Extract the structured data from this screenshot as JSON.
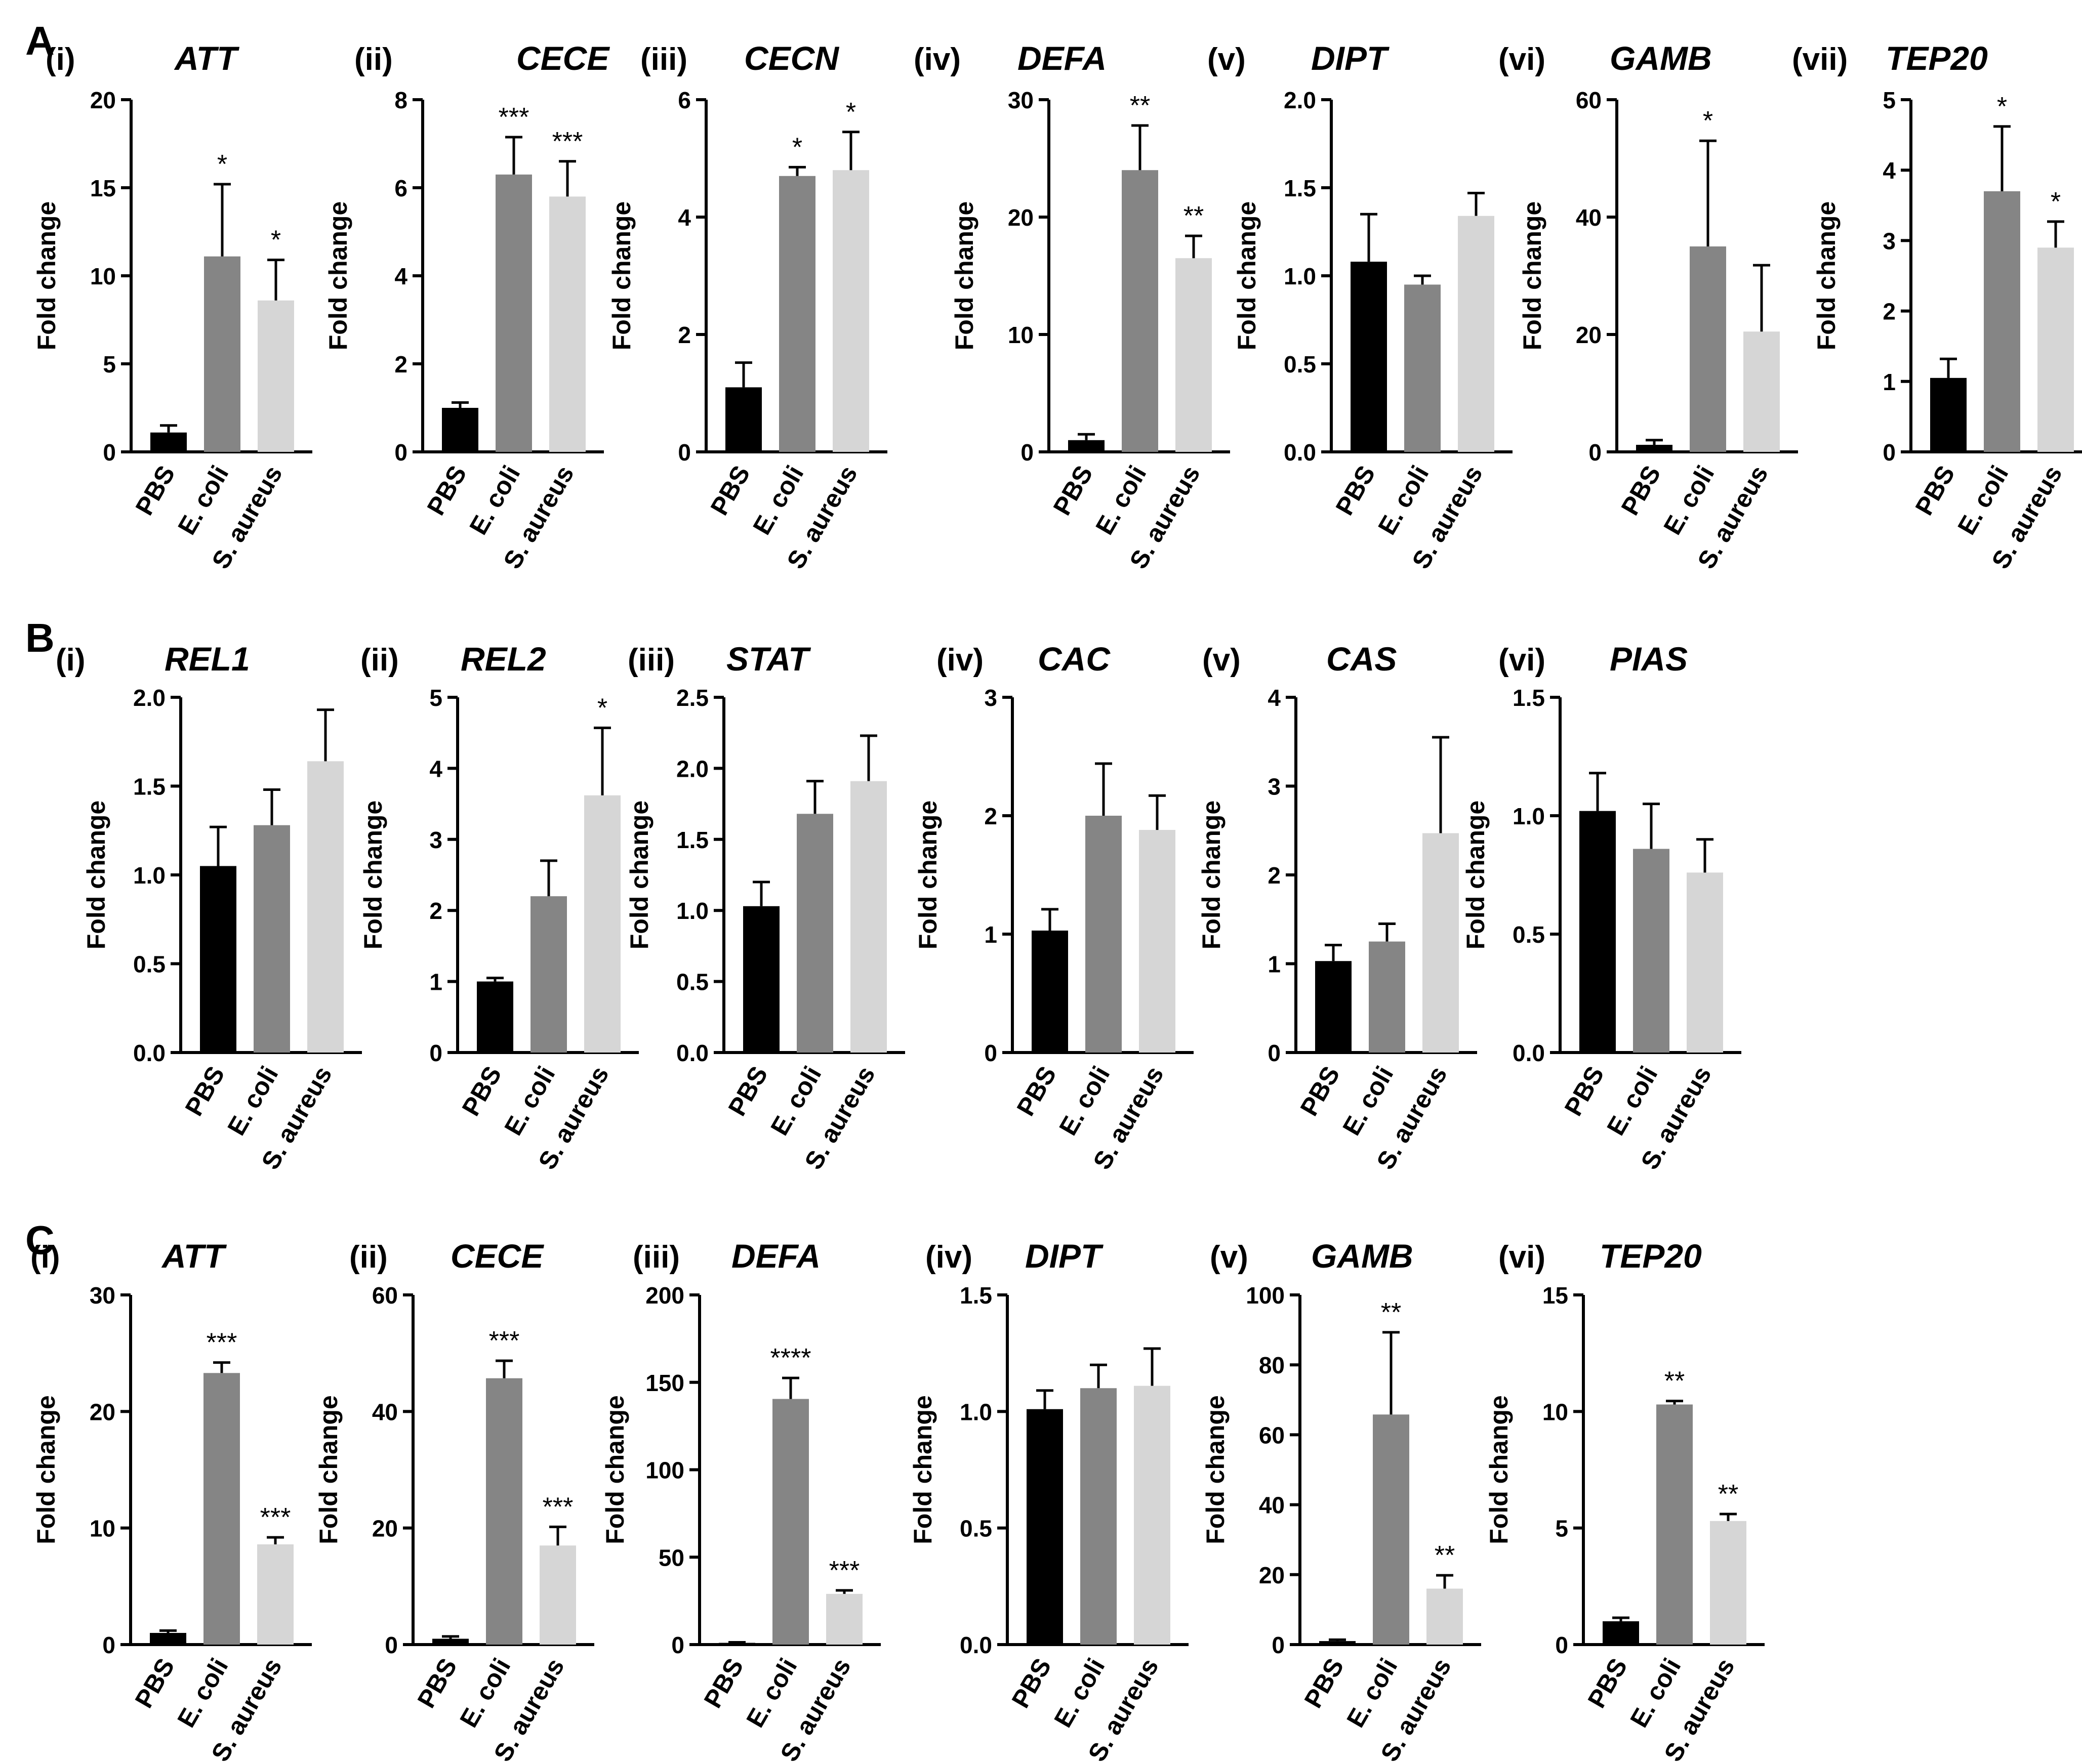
{
  "figure": {
    "categories": [
      "PBS",
      "E. coli",
      "S. aureus"
    ],
    "ylabel": "Fold change",
    "colors": {
      "PBS": "#000000",
      "E. coli": "#858585",
      "S. aureus": "#d6d6d6"
    },
    "panels": [
      {
        "id": "A",
        "label": "A"
      },
      {
        "id": "B",
        "label": "B"
      },
      {
        "id": "C",
        "label": "C"
      }
    ]
  },
  "chart_data": [
    {
      "panel": "A",
      "index": "(i)",
      "title": "ATT",
      "type": "bar",
      "categories": [
        "PBS",
        "E. coli",
        "S. aureus"
      ],
      "values": [
        1.1,
        11.1,
        8.6
      ],
      "errors": [
        0.4,
        4.1,
        2.3
      ],
      "significance": [
        "",
        "*",
        "*"
      ],
      "ylabel": "Fold change",
      "ylim": [
        0,
        20
      ],
      "yticks": [
        0,
        5,
        10,
        15,
        20
      ],
      "yticklabels": [
        "0",
        "5",
        "10",
        "15",
        "20"
      ]
    },
    {
      "panel": "A",
      "index": "(ii)",
      "title": "CECE",
      "type": "bar",
      "categories": [
        "PBS",
        "E. coli",
        "S. aureus"
      ],
      "values": [
        1.0,
        6.3,
        5.8
      ],
      "errors": [
        0.12,
        0.85,
        0.8
      ],
      "significance": [
        "",
        "***",
        "***"
      ],
      "ylabel": "Fold change",
      "ylim": [
        0,
        8
      ],
      "yticks": [
        0,
        2,
        4,
        6,
        8
      ],
      "yticklabels": [
        "0",
        "2",
        "4",
        "6",
        "8"
      ]
    },
    {
      "panel": "A",
      "index": "(iii)",
      "title": "CECN",
      "type": "bar",
      "categories": [
        "PBS",
        "E. coli",
        "S. aureus"
      ],
      "values": [
        1.1,
        4.7,
        4.8
      ],
      "errors": [
        0.42,
        0.15,
        0.65
      ],
      "significance": [
        "",
        "*",
        "*"
      ],
      "ylabel": "Fold change",
      "ylim": [
        0,
        6
      ],
      "yticks": [
        0,
        2,
        4,
        6
      ],
      "yticklabels": [
        "0",
        "2",
        "4",
        "6"
      ]
    },
    {
      "panel": "A",
      "index": "(iv)",
      "title": "DEFA",
      "type": "bar",
      "categories": [
        "PBS",
        "E. coli",
        "S. aureus"
      ],
      "values": [
        1.0,
        24.0,
        16.5
      ],
      "errors": [
        0.5,
        3.8,
        1.9
      ],
      "significance": [
        "",
        "**",
        "**"
      ],
      "ylabel": "Fold change",
      "ylim": [
        0,
        30
      ],
      "yticks": [
        0,
        10,
        20,
        30
      ],
      "yticklabels": [
        "0",
        "10",
        "20",
        "30"
      ]
    },
    {
      "panel": "A",
      "index": "(v)",
      "title": "DIPT",
      "type": "bar",
      "categories": [
        "PBS",
        "E. coli",
        "S. aureus"
      ],
      "values": [
        1.08,
        0.95,
        1.34
      ],
      "errors": [
        0.27,
        0.05,
        0.13
      ],
      "significance": [
        "",
        "",
        ""
      ],
      "ylabel": "Fold change",
      "ylim": [
        0,
        2.0
      ],
      "yticks": [
        0,
        0.5,
        1.0,
        1.5,
        2.0
      ],
      "yticklabels": [
        "0.0",
        "0.5",
        "1.0",
        "1.5",
        "2.0"
      ]
    },
    {
      "panel": "A",
      "index": "(vi)",
      "title": "GAMB",
      "type": "bar",
      "categories": [
        "PBS",
        "E. coli",
        "S. aureus"
      ],
      "values": [
        1.2,
        35.0,
        20.5
      ],
      "errors": [
        0.8,
        18.0,
        11.3
      ],
      "significance": [
        "",
        "*",
        ""
      ],
      "ylabel": "Fold change",
      "ylim": [
        0,
        60
      ],
      "yticks": [
        0,
        20,
        40,
        60
      ],
      "yticklabels": [
        "0",
        "20",
        "40",
        "60"
      ]
    },
    {
      "panel": "A",
      "index": "(vii)",
      "title": "TEP20",
      "type": "bar",
      "categories": [
        "PBS",
        "E. coli",
        "S. aureus"
      ],
      "values": [
        1.05,
        3.7,
        2.9
      ],
      "errors": [
        0.27,
        0.92,
        0.37
      ],
      "significance": [
        "",
        "*",
        "*"
      ],
      "ylabel": "Fold change",
      "ylim": [
        0,
        5
      ],
      "yticks": [
        0,
        1,
        2,
        3,
        4,
        5
      ],
      "yticklabels": [
        "0",
        "1",
        "2",
        "3",
        "4",
        "5"
      ]
    },
    {
      "panel": "B",
      "index": "(i)",
      "title": "REL1",
      "type": "bar",
      "categories": [
        "PBS",
        "E. coli",
        "S. aureus"
      ],
      "values": [
        1.05,
        1.28,
        1.64
      ],
      "errors": [
        0.22,
        0.2,
        0.29
      ],
      "significance": [
        "",
        "",
        ""
      ],
      "ylabel": "Fold change",
      "ylim": [
        0,
        2.0
      ],
      "yticks": [
        0,
        0.5,
        1.0,
        1.5,
        2.0
      ],
      "yticklabels": [
        "0.0",
        "0.5",
        "1.0",
        "1.5",
        "2.0"
      ]
    },
    {
      "panel": "B",
      "index": "(ii)",
      "title": "REL2",
      "type": "bar",
      "categories": [
        "PBS",
        "E. coli",
        "S. aureus"
      ],
      "values": [
        1.0,
        2.2,
        3.62
      ],
      "errors": [
        0.05,
        0.5,
        0.95
      ],
      "significance": [
        "",
        "",
        "*"
      ],
      "ylabel": "Fold change",
      "ylim": [
        0,
        5
      ],
      "yticks": [
        0,
        1,
        2,
        3,
        4,
        5
      ],
      "yticklabels": [
        "0",
        "1",
        "2",
        "3",
        "4",
        "5"
      ]
    },
    {
      "panel": "B",
      "index": "(iii)",
      "title": "STAT",
      "type": "bar",
      "categories": [
        "PBS",
        "E. coli",
        "S. aureus"
      ],
      "values": [
        1.03,
        1.68,
        1.91
      ],
      "errors": [
        0.17,
        0.23,
        0.32
      ],
      "significance": [
        "",
        "",
        ""
      ],
      "ylabel": "Fold change",
      "ylim": [
        0,
        2.5
      ],
      "yticks": [
        0,
        0.5,
        1.0,
        1.5,
        2.0,
        2.5
      ],
      "yticklabels": [
        "0.0",
        "0.5",
        "1.0",
        "1.5",
        "2.0",
        "2.5"
      ]
    },
    {
      "panel": "B",
      "index": "(iv)",
      "title": "CAC",
      "type": "bar",
      "categories": [
        "PBS",
        "E. coli",
        "S. aureus"
      ],
      "values": [
        1.03,
        2.0,
        1.88
      ],
      "errors": [
        0.18,
        0.44,
        0.29
      ],
      "significance": [
        "",
        "",
        ""
      ],
      "ylabel": "Fold change",
      "ylim": [
        0,
        3
      ],
      "yticks": [
        0,
        1,
        2,
        3
      ],
      "yticklabels": [
        "0",
        "1",
        "2",
        "3"
      ]
    },
    {
      "panel": "B",
      "index": "(v)",
      "title": "CAS",
      "type": "bar",
      "categories": [
        "PBS",
        "E. coli",
        "S. aureus"
      ],
      "values": [
        1.03,
        1.25,
        2.47
      ],
      "errors": [
        0.18,
        0.2,
        1.08
      ],
      "significance": [
        "",
        "",
        ""
      ],
      "ylabel": "Fold change",
      "ylim": [
        0,
        4
      ],
      "yticks": [
        0,
        1,
        2,
        3,
        4
      ],
      "yticklabels": [
        "0",
        "1",
        "2",
        "3",
        "4"
      ]
    },
    {
      "panel": "B",
      "index": "(vi)",
      "title": "PIAS",
      "type": "bar",
      "categories": [
        "PBS",
        "E. coli",
        "S. aureus"
      ],
      "values": [
        1.02,
        0.86,
        0.76
      ],
      "errors": [
        0.16,
        0.19,
        0.14
      ],
      "significance": [
        "",
        "",
        ""
      ],
      "ylabel": "Fold change",
      "ylim": [
        0,
        1.5
      ],
      "yticks": [
        0,
        0.5,
        1.0,
        1.5
      ],
      "yticklabels": [
        "0.0",
        "0.5",
        "1.0",
        "1.5"
      ]
    },
    {
      "panel": "C",
      "index": "(i)",
      "title": "ATT",
      "type": "bar",
      "categories": [
        "PBS",
        "E. coli",
        "S. aureus"
      ],
      "values": [
        1.0,
        23.3,
        8.6
      ],
      "errors": [
        0.2,
        0.9,
        0.6
      ],
      "significance": [
        "",
        "***",
        "***"
      ],
      "ylabel": "Fold change",
      "ylim": [
        0,
        30
      ],
      "yticks": [
        0,
        10,
        20,
        30
      ],
      "yticklabels": [
        "0",
        "10",
        "20",
        "30"
      ]
    },
    {
      "panel": "C",
      "index": "(ii)",
      "title": "CECE",
      "type": "bar",
      "categories": [
        "PBS",
        "E. coli",
        "S. aureus"
      ],
      "values": [
        1.0,
        45.7,
        17.0
      ],
      "errors": [
        0.4,
        3.0,
        3.2
      ],
      "significance": [
        "",
        "***",
        "***"
      ],
      "ylabel": "Fold change",
      "ylim": [
        0,
        60
      ],
      "yticks": [
        0,
        20,
        40,
        60
      ],
      "yticklabels": [
        "0",
        "20",
        "40",
        "60"
      ]
    },
    {
      "panel": "C",
      "index": "(iii)",
      "title": "DEFA",
      "type": "bar",
      "categories": [
        "PBS",
        "E. coli",
        "S. aureus"
      ],
      "values": [
        1.0,
        140.5,
        29.0
      ],
      "errors": [
        0.3,
        12.0,
        2.0
      ],
      "significance": [
        "",
        "****",
        "***"
      ],
      "ylabel": "Fold change",
      "ylim": [
        0,
        200
      ],
      "yticks": [
        0,
        50,
        100,
        150,
        200
      ],
      "yticklabels": [
        "0",
        "50",
        "100",
        "150",
        "200"
      ]
    },
    {
      "panel": "C",
      "index": "(iv)",
      "title": "DIPT",
      "type": "bar",
      "categories": [
        "PBS",
        "E. coli",
        "S. aureus"
      ],
      "values": [
        1.01,
        1.1,
        1.11
      ],
      "errors": [
        0.08,
        0.1,
        0.16
      ],
      "significance": [
        "",
        "",
        ""
      ],
      "ylabel": "Fold change",
      "ylim": [
        0,
        1.5
      ],
      "yticks": [
        0,
        0.5,
        1.0,
        1.5
      ],
      "yticklabels": [
        "0.0",
        "0.5",
        "1.0",
        "1.5"
      ]
    },
    {
      "panel": "C",
      "index": "(v)",
      "title": "GAMB",
      "type": "bar",
      "categories": [
        "PBS",
        "E. coli",
        "S. aureus"
      ],
      "values": [
        1.0,
        65.8,
        16.0
      ],
      "errors": [
        0.4,
        23.5,
        3.8
      ],
      "significance": [
        "",
        "**",
        "**"
      ],
      "ylabel": "Fold change",
      "ylim": [
        0,
        100
      ],
      "yticks": [
        0,
        20,
        40,
        60,
        80,
        100
      ],
      "yticklabels": [
        "0",
        "20",
        "40",
        "60",
        "80",
        "100"
      ]
    },
    {
      "panel": "C",
      "index": "(vi)",
      "title": "TEP20",
      "type": "bar",
      "categories": [
        "PBS",
        "E. coli",
        "S. aureus"
      ],
      "values": [
        1.0,
        10.3,
        5.3
      ],
      "errors": [
        0.15,
        0.15,
        0.3
      ],
      "significance": [
        "",
        "**",
        "**"
      ],
      "ylabel": "Fold change",
      "ylim": [
        0,
        15
      ],
      "yticks": [
        0,
        5,
        10,
        15
      ],
      "yticklabels": [
        "0",
        "5",
        "10",
        "15"
      ]
    }
  ]
}
